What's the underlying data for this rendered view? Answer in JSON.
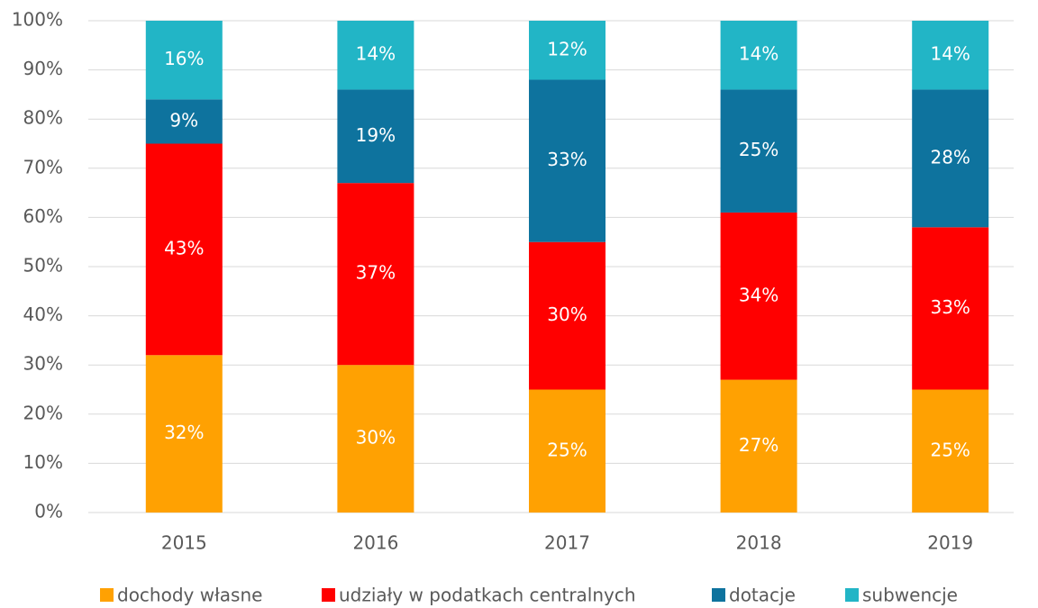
{
  "chart_data": {
    "type": "stacked_bar",
    "categories": [
      "2015",
      "2016",
      "2017",
      "2018",
      "2019"
    ],
    "series": [
      {
        "name": "dochody własne",
        "color": "#ffa102",
        "values": [
          32,
          30,
          25,
          27,
          25
        ],
        "value_labels": [
          "32%",
          "30%",
          "25%",
          "27%",
          "25%"
        ]
      },
      {
        "name": "udziały w podatkach centralnych",
        "color": "#ff0000",
        "values": [
          43,
          37,
          30,
          34,
          33
        ],
        "value_labels": [
          "43%",
          "37%",
          "30%",
          "34%",
          "33%"
        ]
      },
      {
        "name": "dotacje",
        "color": "#0e739e",
        "values": [
          9,
          19,
          33,
          25,
          28
        ],
        "value_labels": [
          "9%",
          "19%",
          "33%",
          "25%",
          "28%"
        ]
      },
      {
        "name": "subwencje",
        "color": "#22b5c6",
        "values": [
          16,
          14,
          12,
          14,
          14
        ],
        "value_labels": [
          "16%",
          "14%",
          "12%",
          "14%",
          "14%"
        ]
      }
    ],
    "ylim": [
      0,
      100
    ],
    "yticks": [
      {
        "value": 0,
        "label": "0%"
      },
      {
        "value": 10,
        "label": "10%"
      },
      {
        "value": 20,
        "label": "20%"
      },
      {
        "value": 30,
        "label": "30%"
      },
      {
        "value": 40,
        "label": "40%"
      },
      {
        "value": 50,
        "label": "50%"
      },
      {
        "value": 60,
        "label": "60%"
      },
      {
        "value": 70,
        "label": "70%"
      },
      {
        "value": 80,
        "label": "80%"
      },
      {
        "value": 90,
        "label": "90%"
      },
      {
        "value": 100,
        "label": "100%"
      }
    ],
    "grid": true,
    "legend": "bottom"
  }
}
